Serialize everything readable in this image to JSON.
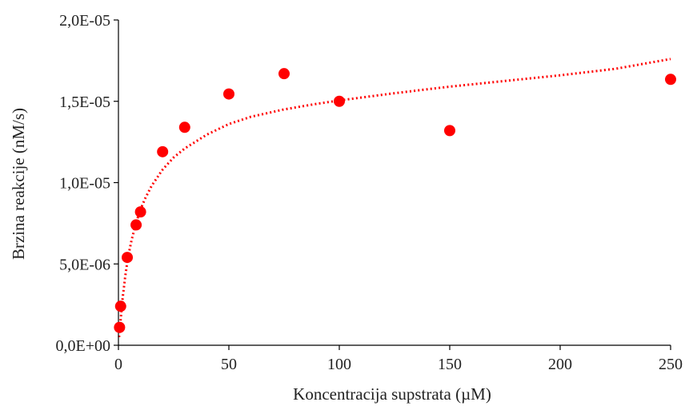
{
  "chart_data": {
    "type": "scatter",
    "xlabel": "Koncentracija supstrata (µM)",
    "ylabel": "Brzina reakcije (nM/s)",
    "xlim": [
      0,
      250
    ],
    "ylim": [
      0,
      2e-05
    ],
    "x_ticks": [
      0,
      50,
      100,
      150,
      200,
      250
    ],
    "x_tick_labels": [
      "0",
      "50",
      "100",
      "150",
      "200",
      "250"
    ],
    "y_ticks": [
      0,
      5e-06,
      1e-05,
      1.5e-05,
      2e-05
    ],
    "y_tick_labels": [
      "0,0E+00",
      "5,0E-06",
      "1,0E-05",
      "1,5E-05",
      "2,0E-05"
    ],
    "grid": false,
    "legend": "none",
    "marker_color": "#ff0000",
    "series": [
      {
        "points": [
          {
            "x": 0.5,
            "y": 1.1e-06
          },
          {
            "x": 1,
            "y": 2.4e-06
          },
          {
            "x": 4,
            "y": 5.4e-06
          },
          {
            "x": 8,
            "y": 7.4e-06
          },
          {
            "x": 10,
            "y": 8.2e-06
          },
          {
            "x": 20,
            "y": 1.19e-05
          },
          {
            "x": 30,
            "y": 1.34e-05
          },
          {
            "x": 50,
            "y": 1.545e-05
          },
          {
            "x": 75,
            "y": 1.67e-05
          },
          {
            "x": 100,
            "y": 1.5e-05
          },
          {
            "x": 150,
            "y": 1.32e-05
          },
          {
            "x": 250,
            "y": 1.635e-05
          }
        ]
      }
    ],
    "trendline": {
      "style": "dotted",
      "color": "#ff0000",
      "x": [
        0.3,
        0.6,
        1,
        1.5,
        2,
        3,
        4,
        5,
        6,
        8,
        10,
        12,
        15,
        20,
        25,
        30,
        40,
        50,
        60,
        75,
        90,
        100,
        125,
        150,
        175,
        200,
        225,
        250
      ],
      "y": [
        5e-07,
        1e-06,
        1.6e-06,
        2.35e-06,
        3e-06,
        4.15e-06,
        5.1e-06,
        5.85e-06,
        6.5e-06,
        7.55e-06,
        8.35e-06,
        9e-06,
        9.8e-06,
        1.08e-05,
        1.155e-05,
        1.21e-05,
        1.295e-05,
        1.36e-05,
        1.405e-05,
        1.45e-05,
        1.485e-05,
        1.505e-05,
        1.55e-05,
        1.59e-05,
        1.625e-05,
        1.66e-05,
        1.7e-05,
        1.76e-05
      ]
    }
  }
}
